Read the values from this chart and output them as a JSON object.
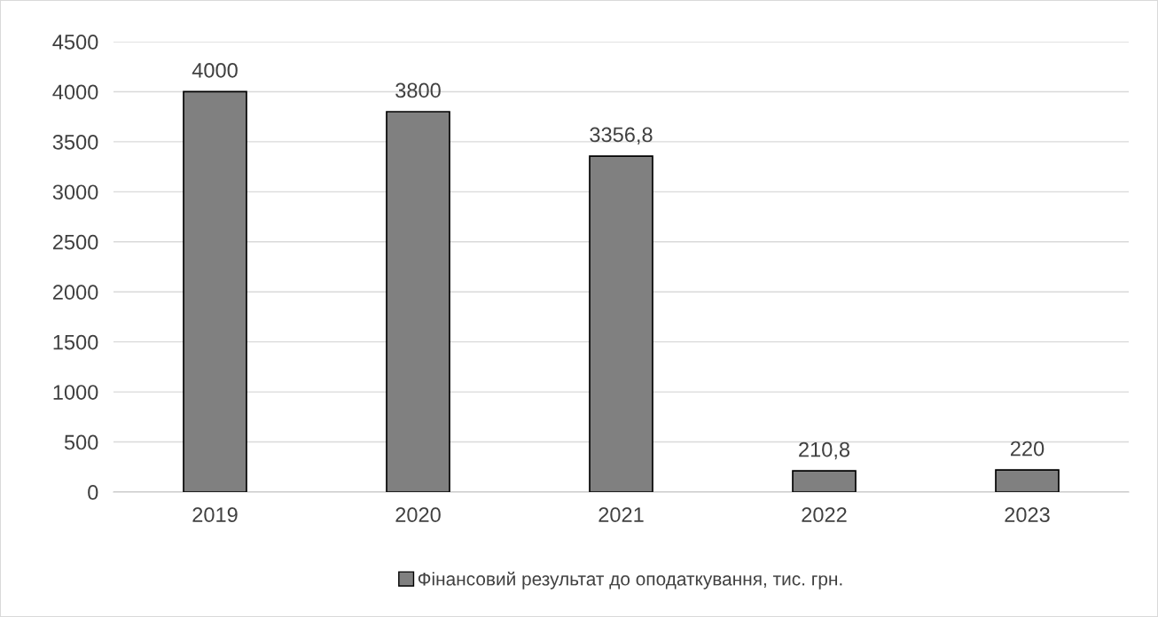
{
  "chart_data": {
    "type": "bar",
    "categories": [
      "2019",
      "2020",
      "2021",
      "2022",
      "2023"
    ],
    "series": [
      {
        "name": "Фінансовий результат до оподаткування, тис. грн.",
        "color": "#808080",
        "values": [
          4000,
          3800,
          3356.8,
          210.8,
          220
        ]
      }
    ],
    "value_labels": [
      "4000",
      "3800",
      "3356,8",
      "210,8",
      "220"
    ],
    "ylim": [
      0,
      4500
    ],
    "yticks": [
      0,
      500,
      1000,
      1500,
      2000,
      2500,
      3000,
      3500,
      4000,
      4500
    ],
    "grid": "y",
    "legend": "bottom"
  }
}
